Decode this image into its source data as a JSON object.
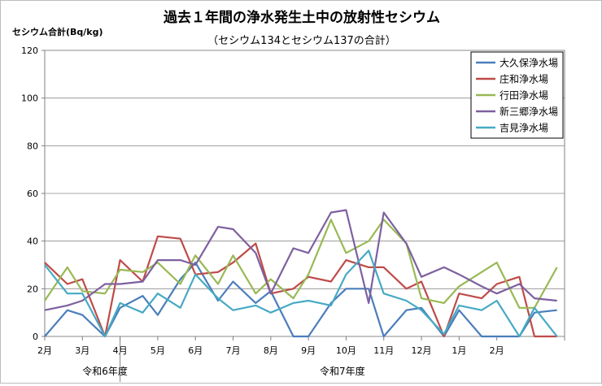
{
  "chart_data": {
    "type": "line",
    "title": "過去１年間の浄水発生土中の放射性セシウム",
    "subtitle": "（セシウム134とセシウム137の合計）",
    "ylabel": "セシウム合計(Bq/kg)",
    "xlabel": "",
    "ylim": [
      0,
      120
    ],
    "yticks": [
      0,
      20,
      40,
      60,
      80,
      100,
      120
    ],
    "grid": true,
    "legend_position": "top-right",
    "month_labels": [
      "2月",
      "3月",
      "4月",
      "5月",
      "6月",
      "7月",
      "8月",
      "9月",
      "10月",
      "11月",
      "12月",
      "1月",
      "2月"
    ],
    "year_labels": [
      "令和6年度",
      "令和7年度"
    ],
    "x_range": [
      0,
      26
    ],
    "x": [
      0,
      0.6,
      1,
      1.6,
      2,
      2.6,
      3,
      3.6,
      4,
      4.6,
      5,
      5.6,
      6,
      6.6,
      7,
      7.6,
      8,
      8.6,
      9,
      9.6,
      10,
      10.6,
      11,
      11.6,
      12,
      12.6,
      13,
      13.6
    ],
    "series": [
      {
        "name": "大久保浄水場",
        "color": "#4a7ebb",
        "values": [
          0,
          11,
          9,
          0,
          12,
          17,
          9,
          24,
          31,
          15,
          23,
          14,
          19,
          0,
          0,
          14,
          20,
          20,
          0,
          11,
          12,
          0,
          11,
          0,
          0,
          0,
          10,
          11
        ]
      },
      {
        "name": "庄和浄水場",
        "color": "#be4b48",
        "values": [
          31,
          22,
          24,
          0,
          32,
          23,
          42,
          41,
          26,
          27,
          31,
          39,
          18,
          20,
          25,
          23,
          32,
          29,
          29,
          20,
          23,
          0,
          18,
          16,
          22,
          25,
          0,
          0
        ]
      },
      {
        "name": "行田浄水場",
        "color": "#98b954",
        "values": [
          15,
          29,
          19,
          18,
          28,
          27,
          31,
          22,
          34,
          22,
          34,
          18,
          24,
          16,
          26,
          49,
          35,
          40,
          49,
          39,
          16,
          14,
          21,
          27,
          31,
          12,
          12,
          29
        ]
      },
      {
        "name": "新三郷浄水場",
        "color": "#7d60a0",
        "values": [
          11,
          13,
          15,
          22,
          22,
          23,
          32,
          32,
          30,
          46,
          45,
          35,
          18,
          37,
          35,
          52,
          53,
          14,
          52,
          39,
          25,
          29,
          26,
          21,
          18,
          22,
          16,
          15
        ]
      },
      {
        "name": "吉見浄水場",
        "color": "#46aac4",
        "values": [
          30,
          18,
          18,
          0,
          14,
          10,
          18,
          12,
          26,
          16,
          11,
          13,
          10,
          14,
          15,
          13,
          26,
          36,
          18,
          15,
          11,
          1,
          13,
          11,
          15,
          0,
          12,
          0
        ]
      }
    ]
  }
}
